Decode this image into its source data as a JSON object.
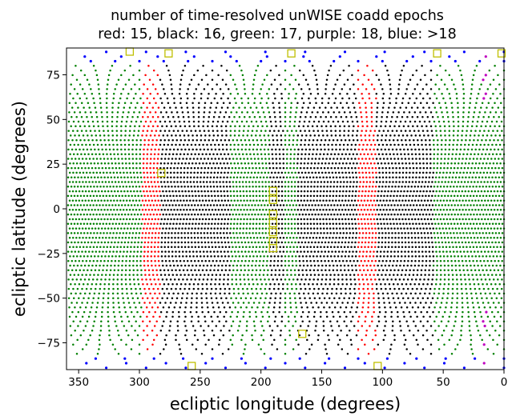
{
  "chart_data": {
    "type": "scatter",
    "title": "number of time-resolved unWISE coadd epochs",
    "subtitle": "red: 15, black: 16, green: 17, purple: 18, blue: >18",
    "xlabel": "ecliptic longitude (degrees)",
    "ylabel": "ecliptic latitude (degrees)",
    "xlim": [
      360,
      0
    ],
    "ylim": [
      -90,
      90
    ],
    "x_reversed": true,
    "grid": false,
    "xticks": [
      350,
      300,
      250,
      200,
      150,
      100,
      50,
      0
    ],
    "xtick_labels": [
      "350",
      "300",
      "250",
      "200",
      "150",
      "100",
      "50",
      "0"
    ],
    "yticks": [
      -75,
      -50,
      -25,
      0,
      25,
      50,
      75
    ],
    "ytick_labels": [
      "−75",
      "−50",
      "−25",
      "0",
      "25",
      "50",
      "75"
    ],
    "colors": {
      "15": "#ff0000",
      "16": "#000000",
      "17": "#008000",
      "18": "#bf00bf",
      ">18": "#0000ff",
      "highlight_squares": "#bfbf00"
    },
    "bands_by_longitude": [
      {
        "from": 360,
        "to": 298,
        "epochs": "17"
      },
      {
        "from": 298,
        "to": 283,
        "epochs": "15"
      },
      {
        "from": 283,
        "to": 225,
        "epochs": "16"
      },
      {
        "from": 225,
        "to": 193,
        "epochs": "17"
      },
      {
        "from": 193,
        "to": 180,
        "epochs": "16"
      },
      {
        "from": 180,
        "to": 170,
        "epochs": "17"
      },
      {
        "from": 170,
        "to": 120,
        "epochs": "16"
      },
      {
        "from": 120,
        "to": 105,
        "epochs": "15"
      },
      {
        "from": 105,
        "to": 58,
        "epochs": "16"
      },
      {
        "from": 58,
        "to": 0,
        "epochs": "17"
      }
    ],
    "polar_caps": {
      "abs_lat_above": 82,
      "epochs": ">18"
    },
    "purple_segments": [
      {
        "lon": 16,
        "lat_range": [
          58,
          90
        ]
      },
      {
        "lon": 16,
        "lat_range": [
          -90,
          -56
        ]
      }
    ],
    "highlighted_points": [
      {
        "lon": 308,
        "lat": 88
      },
      {
        "lon": 276,
        "lat": 87
      },
      {
        "lon": 175,
        "lat": 87
      },
      {
        "lon": 55,
        "lat": 87
      },
      {
        "lon": 2,
        "lat": 87
      },
      {
        "lon": 282,
        "lat": 20
      },
      {
        "lon": 190,
        "lat": 10
      },
      {
        "lon": 190,
        "lat": 5
      },
      {
        "lon": 190,
        "lat": -3
      },
      {
        "lon": 190,
        "lat": -8
      },
      {
        "lon": 190,
        "lat": -13
      },
      {
        "lon": 190,
        "lat": -18
      },
      {
        "lon": 190,
        "lat": -22
      },
      {
        "lon": 166,
        "lat": -70
      },
      {
        "lon": 257,
        "lat": -88
      },
      {
        "lon": 104,
        "lat": -88
      }
    ]
  }
}
